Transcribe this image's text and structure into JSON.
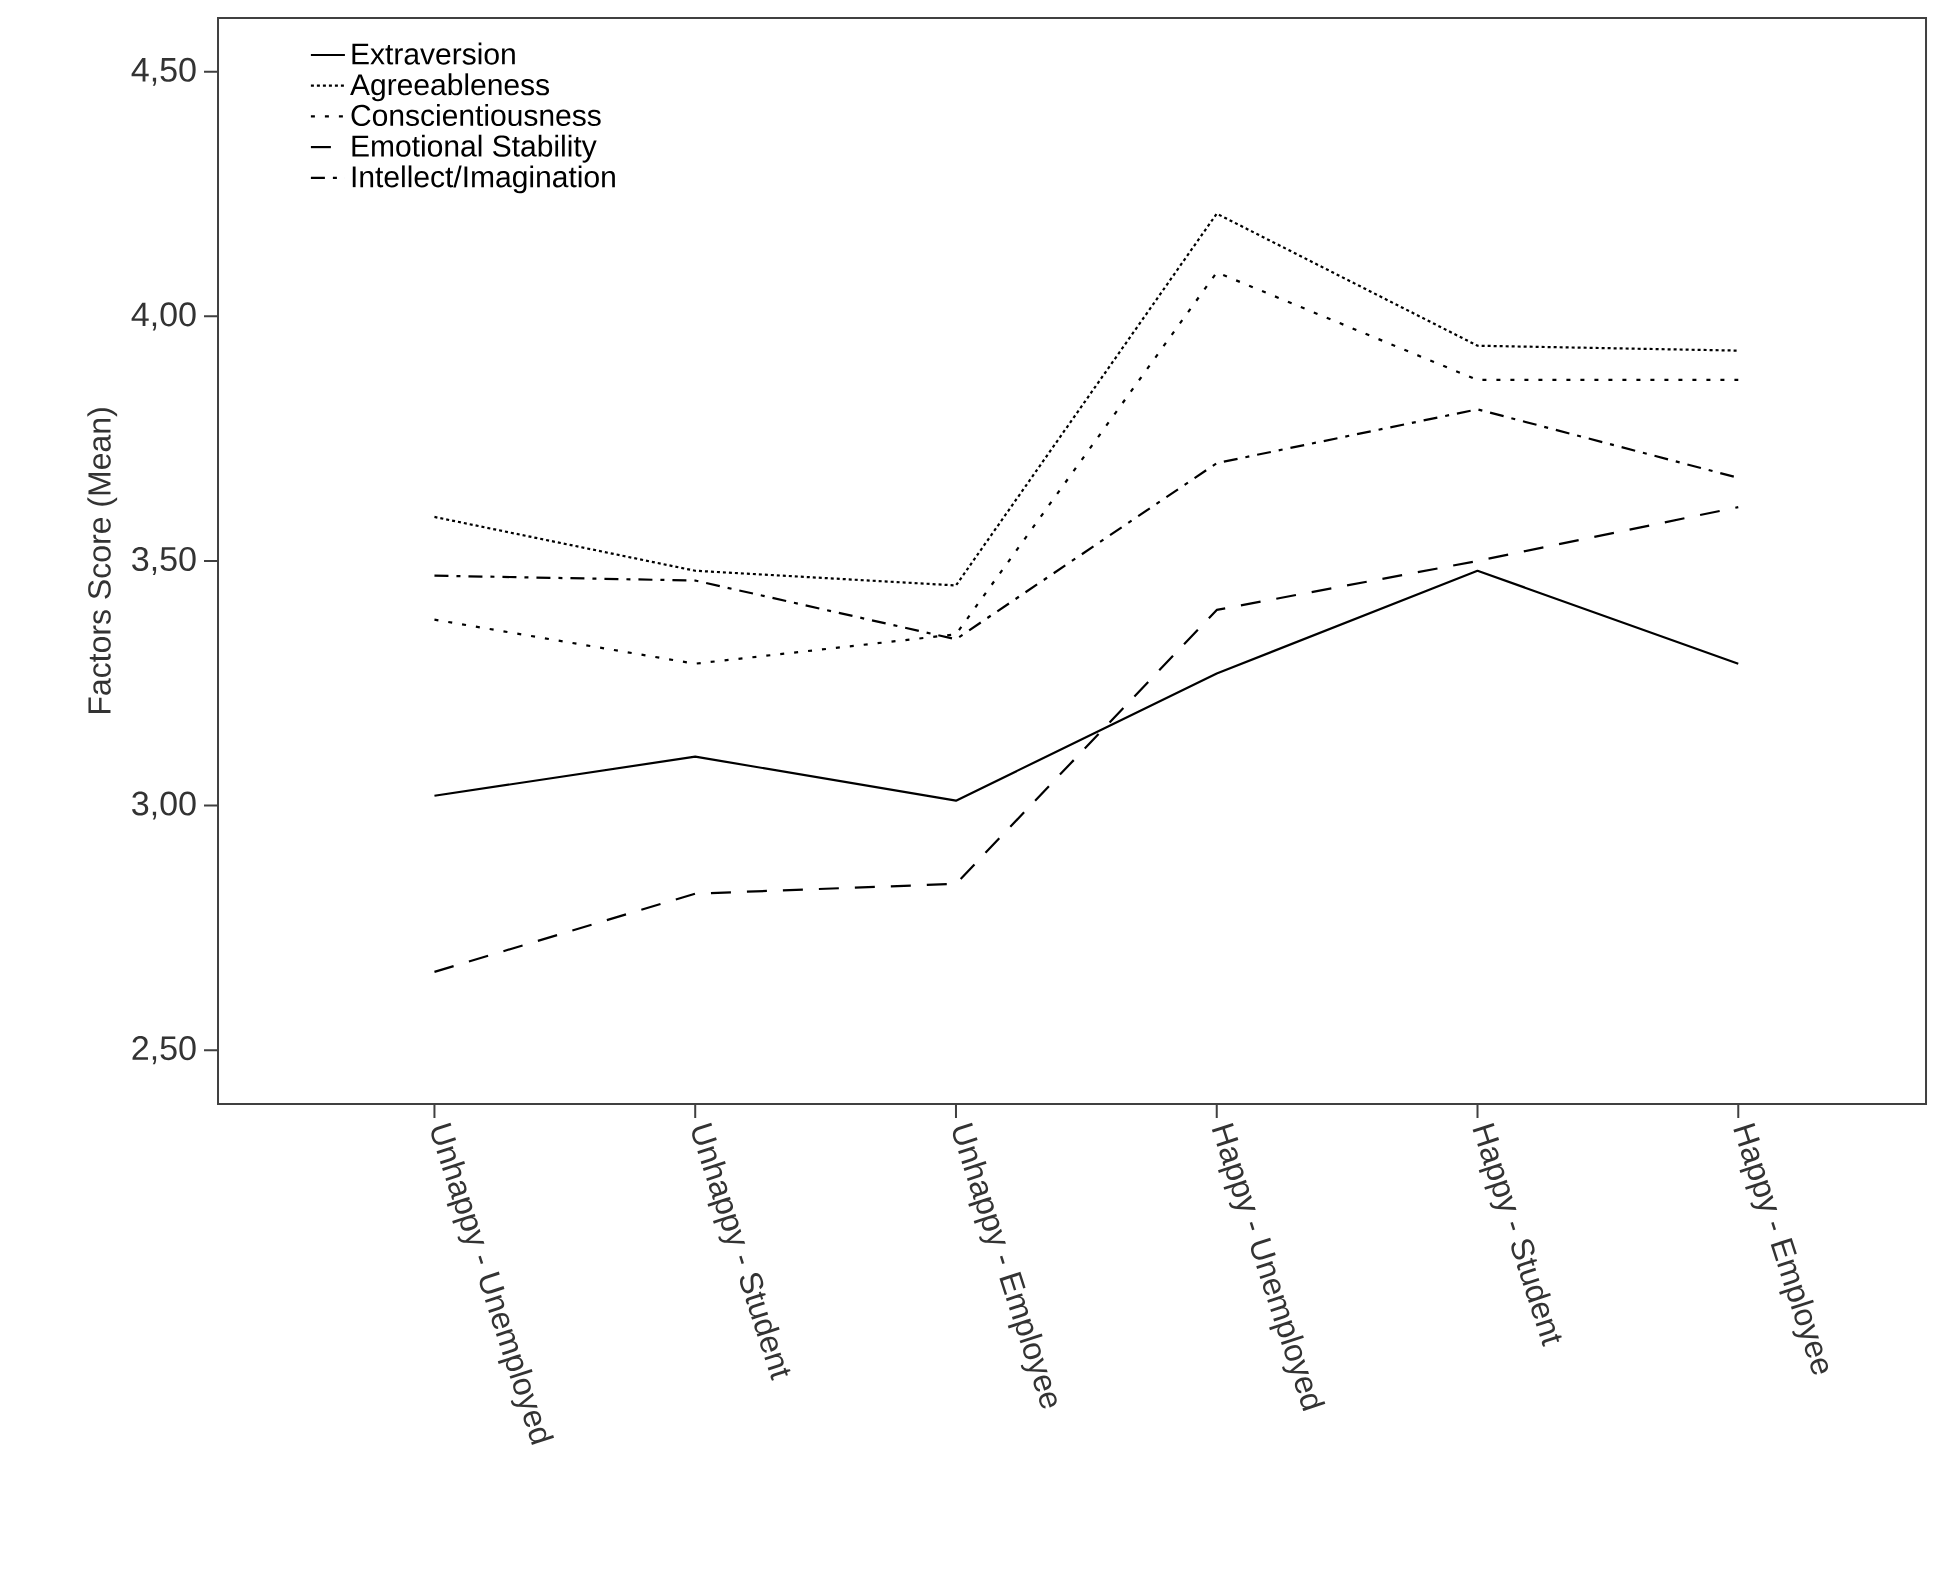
{
  "chart_data": {
    "type": "line",
    "ylabel": "Factors Score (Mean)",
    "categories": [
      "Unhappy - Unemployed",
      "Unhappy - Student",
      "Unhappy - Employee",
      "Happy - Unemployed",
      "Happy - Student",
      "Happy - Employee"
    ],
    "series": [
      {
        "name": "Extraversion",
        "color": "#000000",
        "line_style": "solid",
        "values": [
          3.02,
          3.1,
          3.01,
          3.27,
          3.48,
          3.29
        ]
      },
      {
        "name": "Agreeableness",
        "color": "#000000",
        "line_style": "dotted",
        "values": [
          3.59,
          3.48,
          3.45,
          4.21,
          3.94,
          3.93
        ]
      },
      {
        "name": "Conscientiousness",
        "color": "#000000",
        "line_style": "dotted",
        "values": [
          3.38,
          3.29,
          3.35,
          4.09,
          3.87,
          3.87
        ]
      },
      {
        "name": "Emotional Stability",
        "color": "#000000",
        "line_style": "dashed",
        "values": [
          2.66,
          2.82,
          2.84,
          3.4,
          3.5,
          3.61
        ]
      },
      {
        "name": "Intellect/Imagination",
        "color": "#000000",
        "line_style": "dashed",
        "values": [
          3.47,
          3.46,
          3.34,
          3.7,
          3.81,
          3.67
        ]
      }
    ],
    "ylim": [
      2.39,
      4.61
    ],
    "yticks": [
      {
        "value": 2.5,
        "label": "2,50"
      },
      {
        "value": 3.0,
        "label": "3,00"
      },
      {
        "value": 3.5,
        "label": "3,50"
      },
      {
        "value": 4.0,
        "label": "4,00"
      },
      {
        "value": 4.5,
        "label": "4,50"
      }
    ],
    "grid": false,
    "legend": "top left",
    "marker": "none"
  }
}
